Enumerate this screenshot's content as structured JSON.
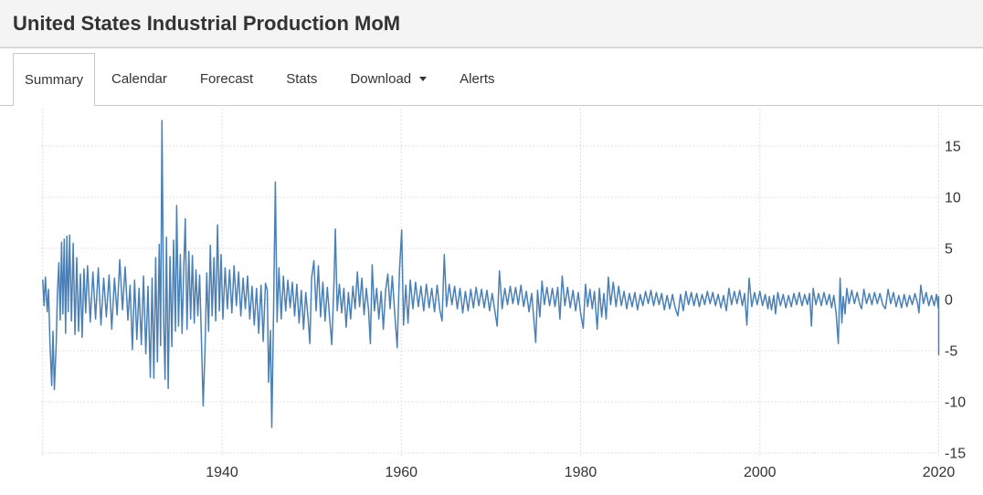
{
  "header": {
    "title": "United States Industrial Production MoM"
  },
  "tabs": [
    {
      "label": "Summary",
      "active": true
    },
    {
      "label": "Calendar",
      "active": false
    },
    {
      "label": "Forecast",
      "active": false
    },
    {
      "label": "Stats",
      "active": false
    },
    {
      "label": "Download",
      "active": false,
      "caret_icon": "caret-down"
    },
    {
      "label": "Alerts",
      "active": false
    }
  ],
  "chart_data": {
    "type": "line",
    "title": "United States Industrial Production MoM",
    "xlabel": "",
    "ylabel": "",
    "xlim": [
      1920,
      2020.5
    ],
    "ylim": [
      -15,
      19
    ],
    "grid": "dotted",
    "legend": "none",
    "line_color": "#4a80b5",
    "grid_color": "#d6d6d6",
    "axis_text_color": "#333333",
    "y_ticks": [
      15,
      10,
      5,
      0,
      -5,
      -10,
      -15
    ],
    "x_gridlines": [
      {
        "year": 1920,
        "label": ""
      },
      {
        "year": 1940,
        "label": "1940"
      },
      {
        "year": 1960,
        "label": "1960"
      },
      {
        "year": 1980,
        "label": "1980"
      },
      {
        "year": 2000,
        "label": "2000"
      },
      {
        "year": 2020,
        "label": "2020"
      }
    ],
    "points": [
      [
        1920.0,
        1.9
      ],
      [
        1920.15,
        -0.6
      ],
      [
        1920.3,
        2.2
      ],
      [
        1920.5,
        -1.2
      ],
      [
        1920.65,
        1.0
      ],
      [
        1920.8,
        -4.0
      ],
      [
        1921.0,
        -8.4
      ],
      [
        1921.15,
        -3.1
      ],
      [
        1921.3,
        -8.8
      ],
      [
        1921.5,
        -4.4
      ],
      [
        1921.65,
        0.8
      ],
      [
        1921.8,
        3.6
      ],
      [
        1921.95,
        -2.0
      ],
      [
        1922.1,
        5.6
      ],
      [
        1922.25,
        -1.4
      ],
      [
        1922.4,
        5.9
      ],
      [
        1922.55,
        -3.3
      ],
      [
        1922.7,
        6.2
      ],
      [
        1922.85,
        -1.2
      ],
      [
        1923.0,
        6.3
      ],
      [
        1923.2,
        -2.1
      ],
      [
        1923.4,
        5.5
      ],
      [
        1923.6,
        -3.4
      ],
      [
        1923.8,
        4.1
      ],
      [
        1924.0,
        -3.1
      ],
      [
        1924.2,
        2.5
      ],
      [
        1924.4,
        -3.7
      ],
      [
        1924.6,
        3.0
      ],
      [
        1924.8,
        -1.3
      ],
      [
        1925.0,
        3.3
      ],
      [
        1925.3,
        -2.2
      ],
      [
        1925.6,
        2.7
      ],
      [
        1925.9,
        -1.9
      ],
      [
        1926.2,
        3.1
      ],
      [
        1926.5,
        -2.5
      ],
      [
        1926.8,
        2.1
      ],
      [
        1927.1,
        -1.7
      ],
      [
        1927.4,
        2.4
      ],
      [
        1927.7,
        -2.9
      ],
      [
        1928.0,
        2.1
      ],
      [
        1928.3,
        -1.5
      ],
      [
        1928.6,
        3.9
      ],
      [
        1928.9,
        -1.0
      ],
      [
        1929.2,
        3.2
      ],
      [
        1929.5,
        -2.0
      ],
      [
        1929.75,
        1.4
      ],
      [
        1930.0,
        -4.9
      ],
      [
        1930.25,
        1.9
      ],
      [
        1930.5,
        -3.9
      ],
      [
        1930.75,
        1.1
      ],
      [
        1931.0,
        -4.4
      ],
      [
        1931.25,
        2.3
      ],
      [
        1931.5,
        -5.3
      ],
      [
        1931.75,
        1.3
      ],
      [
        1932.0,
        -7.6
      ],
      [
        1932.2,
        2.1
      ],
      [
        1932.4,
        -7.7
      ],
      [
        1932.6,
        4.1
      ],
      [
        1932.8,
        -6.1
      ],
      [
        1933.0,
        5.4
      ],
      [
        1933.15,
        -4.5
      ],
      [
        1933.3,
        17.5
      ],
      [
        1933.5,
        -2.2
      ],
      [
        1933.65,
        -7.8
      ],
      [
        1933.8,
        6.1
      ],
      [
        1934.0,
        -8.7
      ],
      [
        1934.2,
        4.2
      ],
      [
        1934.4,
        -4.6
      ],
      [
        1934.6,
        5.8
      ],
      [
        1934.8,
        -3.1
      ],
      [
        1934.95,
        9.2
      ],
      [
        1935.15,
        -2.6
      ],
      [
        1935.35,
        4.4
      ],
      [
        1935.55,
        -3.3
      ],
      [
        1935.75,
        3.5
      ],
      [
        1935.9,
        7.9
      ],
      [
        1936.1,
        -2.9
      ],
      [
        1936.3,
        4.7
      ],
      [
        1936.5,
        -1.9
      ],
      [
        1936.7,
        4.3
      ],
      [
        1936.9,
        -2.3
      ],
      [
        1937.1,
        2.9
      ],
      [
        1937.3,
        -1.6
      ],
      [
        1937.5,
        2.4
      ],
      [
        1937.7,
        -3.6
      ],
      [
        1937.9,
        -10.4
      ],
      [
        1938.1,
        -4.9
      ],
      [
        1938.3,
        2.6
      ],
      [
        1938.5,
        -3.1
      ],
      [
        1938.7,
        5.3
      ],
      [
        1938.9,
        -1.6
      ],
      [
        1939.1,
        4.1
      ],
      [
        1939.3,
        -2.1
      ],
      [
        1939.5,
        7.3
      ],
      [
        1939.7,
        -1.1
      ],
      [
        1939.9,
        4.4
      ],
      [
        1940.1,
        -1.9
      ],
      [
        1940.35,
        3.1
      ],
      [
        1940.6,
        -0.9
      ],
      [
        1940.85,
        2.9
      ],
      [
        1941.1,
        -1.3
      ],
      [
        1941.35,
        3.3
      ],
      [
        1941.6,
        -0.6
      ],
      [
        1941.85,
        2.7
      ],
      [
        1942.1,
        -1.6
      ],
      [
        1942.35,
        2.1
      ],
      [
        1942.6,
        -0.9
      ],
      [
        1942.85,
        2.3
      ],
      [
        1943.1,
        -1.9
      ],
      [
        1943.35,
        1.3
      ],
      [
        1943.6,
        -2.5
      ],
      [
        1943.85,
        1.1
      ],
      [
        1944.1,
        -3.3
      ],
      [
        1944.35,
        1.4
      ],
      [
        1944.6,
        -4.1
      ],
      [
        1944.85,
        1.6
      ],
      [
        1945.05,
        0.9
      ],
      [
        1945.2,
        -8.1
      ],
      [
        1945.4,
        -3.0
      ],
      [
        1945.55,
        -12.5
      ],
      [
        1945.75,
        -1.5
      ],
      [
        1945.95,
        11.5
      ],
      [
        1946.15,
        -2.2
      ],
      [
        1946.35,
        3.1
      ],
      [
        1946.6,
        -1.9
      ],
      [
        1946.85,
        2.3
      ],
      [
        1947.1,
        -1.1
      ],
      [
        1947.35,
        1.9
      ],
      [
        1947.6,
        -0.8
      ],
      [
        1947.85,
        1.7
      ],
      [
        1948.1,
        -1.6
      ],
      [
        1948.35,
        1.5
      ],
      [
        1948.6,
        -2.3
      ],
      [
        1948.85,
        0.9
      ],
      [
        1949.1,
        -2.9
      ],
      [
        1949.35,
        0.7
      ],
      [
        1949.6,
        -1.8
      ],
      [
        1949.8,
        -4.3
      ],
      [
        1950.0,
        2.1
      ],
      [
        1950.25,
        3.8
      ],
      [
        1950.5,
        -1.1
      ],
      [
        1950.75,
        3.3
      ],
      [
        1951.0,
        -1.7
      ],
      [
        1951.25,
        1.7
      ],
      [
        1951.5,
        -2.1
      ],
      [
        1951.75,
        1.2
      ],
      [
        1952.0,
        -1.8
      ],
      [
        1952.25,
        -4.4
      ],
      [
        1952.5,
        2.0
      ],
      [
        1952.65,
        6.9
      ],
      [
        1952.85,
        -1.1
      ],
      [
        1953.1,
        1.5
      ],
      [
        1953.35,
        -1.3
      ],
      [
        1953.6,
        1.1
      ],
      [
        1953.85,
        -2.7
      ],
      [
        1954.1,
        0.7
      ],
      [
        1954.35,
        -1.9
      ],
      [
        1954.6,
        1.3
      ],
      [
        1954.85,
        -0.9
      ],
      [
        1955.1,
        2.7
      ],
      [
        1955.35,
        -0.7
      ],
      [
        1955.6,
        2.1
      ],
      [
        1955.85,
        -1.5
      ],
      [
        1956.1,
        1.1
      ],
      [
        1956.35,
        -1.0
      ],
      [
        1956.55,
        -4.3
      ],
      [
        1956.75,
        3.4
      ],
      [
        1957.0,
        -1.1
      ],
      [
        1957.25,
        1.1
      ],
      [
        1957.5,
        -1.9
      ],
      [
        1957.75,
        0.8
      ],
      [
        1958.0,
        -2.9
      ],
      [
        1958.25,
        0.9
      ],
      [
        1958.5,
        2.5
      ],
      [
        1958.75,
        -0.9
      ],
      [
        1959.0,
        2.3
      ],
      [
        1959.25,
        -1.1
      ],
      [
        1959.55,
        -4.7
      ],
      [
        1959.8,
        2.9
      ],
      [
        1960.05,
        6.8
      ],
      [
        1960.25,
        -2.5
      ],
      [
        1960.5,
        1.4
      ],
      [
        1960.75,
        -2.3
      ],
      [
        1961.0,
        1.9
      ],
      [
        1961.3,
        -0.9
      ],
      [
        1961.6,
        1.7
      ],
      [
        1961.9,
        -0.7
      ],
      [
        1962.2,
        1.3
      ],
      [
        1962.5,
        -1.1
      ],
      [
        1962.8,
        1.5
      ],
      [
        1963.1,
        -0.8
      ],
      [
        1963.4,
        1.1
      ],
      [
        1963.7,
        -1.2
      ],
      [
        1964.0,
        1.4
      ],
      [
        1964.3,
        -1.0
      ],
      [
        1964.55,
        -2.1
      ],
      [
        1964.8,
        4.4
      ],
      [
        1965.05,
        -0.7
      ],
      [
        1965.35,
        1.5
      ],
      [
        1965.65,
        -0.5
      ],
      [
        1965.95,
        1.3
      ],
      [
        1966.25,
        -0.9
      ],
      [
        1966.55,
        1.1
      ],
      [
        1966.85,
        -1.3
      ],
      [
        1967.15,
        0.8
      ],
      [
        1967.45,
        -1.1
      ],
      [
        1967.75,
        1.0
      ],
      [
        1968.05,
        -0.8
      ],
      [
        1968.35,
        1.2
      ],
      [
        1968.65,
        -0.6
      ],
      [
        1968.95,
        1.0
      ],
      [
        1969.25,
        -0.8
      ],
      [
        1969.55,
        0.9
      ],
      [
        1969.85,
        -1.1
      ],
      [
        1970.15,
        0.6
      ],
      [
        1970.45,
        -1.2
      ],
      [
        1970.7,
        -2.6
      ],
      [
        1970.95,
        2.8
      ],
      [
        1971.25,
        -0.9
      ],
      [
        1971.55,
        1.1
      ],
      [
        1971.85,
        -0.5
      ],
      [
        1972.15,
        1.3
      ],
      [
        1972.45,
        -0.4
      ],
      [
        1972.75,
        1.2
      ],
      [
        1973.05,
        -0.5
      ],
      [
        1973.35,
        1.4
      ],
      [
        1973.65,
        -0.7
      ],
      [
        1973.95,
        0.8
      ],
      [
        1974.25,
        -1.2
      ],
      [
        1974.55,
        0.6
      ],
      [
        1974.8,
        -2.1
      ],
      [
        1975.0,
        -4.2
      ],
      [
        1975.2,
        0.9
      ],
      [
        1975.45,
        -1.7
      ],
      [
        1975.7,
        1.8
      ],
      [
        1975.95,
        -0.5
      ],
      [
        1976.25,
        1.2
      ],
      [
        1976.55,
        -0.6
      ],
      [
        1976.85,
        1.1
      ],
      [
        1977.15,
        -0.7
      ],
      [
        1977.45,
        1.2
      ],
      [
        1977.7,
        -1.9
      ],
      [
        1977.95,
        2.3
      ],
      [
        1978.25,
        -0.6
      ],
      [
        1978.55,
        1.2
      ],
      [
        1978.85,
        -0.8
      ],
      [
        1979.15,
        0.9
      ],
      [
        1979.45,
        -1.1
      ],
      [
        1979.75,
        0.7
      ],
      [
        1980.0,
        -1.3
      ],
      [
        1980.3,
        -2.8
      ],
      [
        1980.55,
        1.5
      ],
      [
        1980.8,
        -0.7
      ],
      [
        1981.05,
        1.0
      ],
      [
        1981.3,
        -0.9
      ],
      [
        1981.55,
        0.8
      ],
      [
        1981.85,
        -2.9
      ],
      [
        1982.1,
        1.1
      ],
      [
        1982.35,
        -1.7
      ],
      [
        1982.6,
        0.6
      ],
      [
        1982.85,
        -1.9
      ],
      [
        1983.1,
        2.2
      ],
      [
        1983.35,
        -0.5
      ],
      [
        1983.65,
        1.7
      ],
      [
        1983.95,
        -0.7
      ],
      [
        1984.25,
        1.3
      ],
      [
        1984.55,
        -0.6
      ],
      [
        1984.85,
        0.8
      ],
      [
        1985.15,
        -0.9
      ],
      [
        1985.45,
        0.6
      ],
      [
        1985.75,
        -0.7
      ],
      [
        1986.05,
        0.7
      ],
      [
        1986.35,
        -1.0
      ],
      [
        1986.65,
        0.5
      ],
      [
        1986.95,
        -0.6
      ],
      [
        1987.25,
        0.8
      ],
      [
        1987.55,
        -0.4
      ],
      [
        1987.85,
        0.9
      ],
      [
        1988.15,
        -0.6
      ],
      [
        1988.45,
        0.7
      ],
      [
        1988.75,
        -0.5
      ],
      [
        1989.05,
        0.6
      ],
      [
        1989.35,
        -1.0
      ],
      [
        1989.65,
        0.4
      ],
      [
        1989.95,
        -0.9
      ],
      [
        1990.25,
        0.5
      ],
      [
        1990.55,
        -0.8
      ],
      [
        1990.85,
        -1.6
      ],
      [
        1991.15,
        0.5
      ],
      [
        1991.45,
        -1.1
      ],
      [
        1991.75,
        0.8
      ],
      [
        1992.05,
        -0.5
      ],
      [
        1992.35,
        0.7
      ],
      [
        1992.65,
        -0.6
      ],
      [
        1992.95,
        0.6
      ],
      [
        1993.25,
        -0.7
      ],
      [
        1993.55,
        0.5
      ],
      [
        1993.85,
        -0.5
      ],
      [
        1994.15,
        0.8
      ],
      [
        1994.45,
        -0.4
      ],
      [
        1994.75,
        0.7
      ],
      [
        1995.05,
        -0.6
      ],
      [
        1995.35,
        0.5
      ],
      [
        1995.65,
        -0.8
      ],
      [
        1995.95,
        0.4
      ],
      [
        1996.25,
        -1.1
      ],
      [
        1996.55,
        1.1
      ],
      [
        1996.85,
        -0.5
      ],
      [
        1997.15,
        0.8
      ],
      [
        1997.45,
        -0.4
      ],
      [
        1997.75,
        0.9
      ],
      [
        1998.05,
        -0.6
      ],
      [
        1998.3,
        0.6
      ],
      [
        1998.55,
        -2.5
      ],
      [
        1998.8,
        2.1
      ],
      [
        1999.1,
        -0.7
      ],
      [
        1999.4,
        0.7
      ],
      [
        1999.7,
        -0.5
      ],
      [
        2000.0,
        0.8
      ],
      [
        2000.3,
        -0.6
      ],
      [
        2000.6,
        0.5
      ],
      [
        2000.9,
        -0.9
      ],
      [
        2001.05,
        0.3
      ],
      [
        2001.3,
        -1.0
      ],
      [
        2001.55,
        0.4
      ],
      [
        2001.75,
        -1.4
      ],
      [
        2002.0,
        0.7
      ],
      [
        2002.3,
        -0.6
      ],
      [
        2002.6,
        0.5
      ],
      [
        2002.9,
        -0.8
      ],
      [
        2003.2,
        0.4
      ],
      [
        2003.5,
        -0.7
      ],
      [
        2003.8,
        0.6
      ],
      [
        2004.1,
        -0.5
      ],
      [
        2004.4,
        0.7
      ],
      [
        2004.7,
        -0.6
      ],
      [
        2005.0,
        0.5
      ],
      [
        2005.3,
        -0.5
      ],
      [
        2005.55,
        0.6
      ],
      [
        2005.75,
        -2.6
      ],
      [
        2005.95,
        1.1
      ],
      [
        2006.25,
        -0.5
      ],
      [
        2006.55,
        0.6
      ],
      [
        2006.85,
        -0.6
      ],
      [
        2007.15,
        0.7
      ],
      [
        2007.45,
        -0.5
      ],
      [
        2007.75,
        0.5
      ],
      [
        2008.0,
        -0.8
      ],
      [
        2008.25,
        0.4
      ],
      [
        2008.5,
        -1.3
      ],
      [
        2008.75,
        -4.3
      ],
      [
        2008.95,
        2.1
      ],
      [
        2009.15,
        -2.3
      ],
      [
        2009.3,
        0.3
      ],
      [
        2009.5,
        -1.4
      ],
      [
        2009.7,
        1.1
      ],
      [
        2009.95,
        -0.4
      ],
      [
        2010.25,
        0.9
      ],
      [
        2010.55,
        -0.4
      ],
      [
        2010.85,
        0.7
      ],
      [
        2011.15,
        -0.5
      ],
      [
        2011.35,
        -0.9
      ],
      [
        2011.6,
        1.0
      ],
      [
        2011.9,
        -0.4
      ],
      [
        2012.2,
        0.6
      ],
      [
        2012.5,
        -0.5
      ],
      [
        2012.8,
        0.7
      ],
      [
        2013.1,
        -0.4
      ],
      [
        2013.4,
        0.6
      ],
      [
        2013.7,
        -0.5
      ],
      [
        2014.0,
        -0.9
      ],
      [
        2014.3,
        1.0
      ],
      [
        2014.6,
        -0.4
      ],
      [
        2014.9,
        0.7
      ],
      [
        2015.2,
        -0.7
      ],
      [
        2015.5,
        0.4
      ],
      [
        2015.8,
        -0.8
      ],
      [
        2016.1,
        0.5
      ],
      [
        2016.4,
        -0.7
      ],
      [
        2016.7,
        0.4
      ],
      [
        2017.0,
        -0.5
      ],
      [
        2017.3,
        0.6
      ],
      [
        2017.6,
        -0.4
      ],
      [
        2017.75,
        -1.3
      ],
      [
        2017.95,
        1.4
      ],
      [
        2018.25,
        -0.4
      ],
      [
        2018.55,
        0.7
      ],
      [
        2018.85,
        -0.6
      ],
      [
        2019.15,
        0.4
      ],
      [
        2019.45,
        -0.6
      ],
      [
        2019.7,
        0.5
      ],
      [
        2019.9,
        -0.8
      ],
      [
        2020.05,
        0.3
      ],
      [
        2020.2,
        -5.4
      ]
    ]
  }
}
